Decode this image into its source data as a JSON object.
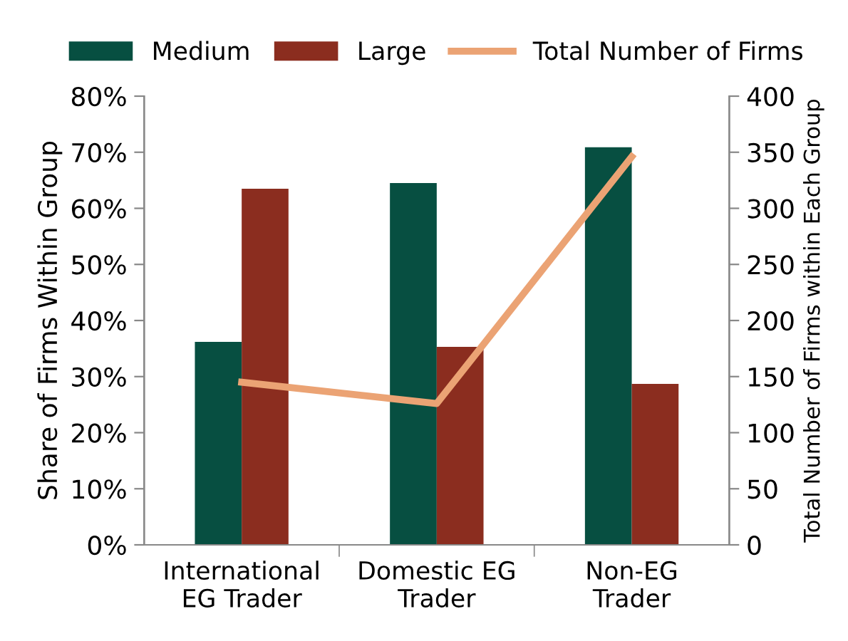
{
  "chart_data": {
    "type": "bar",
    "categories": [
      "International\nEG Trader",
      "Domestic EG\nTrader",
      "Non-EG\nTrader"
    ],
    "ylabel": "Share of Firms Within Group",
    "y2label": "Total Number of Firms within Each Group",
    "series": [
      {
        "name": "Medium",
        "color": "#074f41",
        "values": [
          36.2,
          64.5,
          70.9
        ]
      },
      {
        "name": "Large",
        "color": "#8b2d1f",
        "values": [
          63.5,
          35.3,
          28.7
        ]
      },
      {
        "name": "Total Number of Firms",
        "type": "line",
        "axis": "y2",
        "color": "#eba374",
        "values": [
          145,
          126,
          346
        ],
        "marker": "none"
      }
    ],
    "ylim": [
      0,
      80
    ],
    "yticks": [
      {
        "value": 0,
        "label": "0%"
      },
      {
        "value": 10,
        "label": "10%"
      },
      {
        "value": 20,
        "label": "20%"
      },
      {
        "value": 30,
        "label": "30%"
      },
      {
        "value": 40,
        "label": "40%"
      },
      {
        "value": 50,
        "label": "50%"
      },
      {
        "value": 60,
        "label": "60%"
      },
      {
        "value": 70,
        "label": "70%"
      },
      {
        "value": 80,
        "label": "80%"
      }
    ],
    "y2lim": [
      0,
      400
    ],
    "y2ticks": [
      0,
      50,
      100,
      150,
      200,
      250,
      300,
      350,
      400
    ],
    "grid": false,
    "legend": "top"
  }
}
